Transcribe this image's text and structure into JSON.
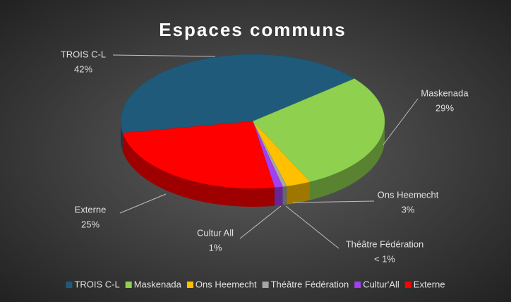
{
  "chart_data": {
    "type": "pie3d",
    "title": "Espaces communs",
    "categories": [
      "TROIS C-L",
      "Maskenada",
      "Ons Heemecht",
      "Théâtre Fédération",
      "Cultur'All",
      "Externe"
    ],
    "label_categories": [
      "TROIS C-L",
      "Maskenada",
      "Ons Heemecht",
      "Théâtre Fédération",
      "Cultur All",
      "Externe"
    ],
    "values": [
      42,
      29,
      3,
      0.5,
      1,
      25
    ],
    "value_labels": [
      "42%",
      "29%",
      "3%",
      "< 1%",
      "1%",
      "25%"
    ],
    "colors": [
      "#1f5a7a",
      "#8fd14f",
      "#ffc000",
      "#a6a6a6",
      "#a040f0",
      "#ff0000"
    ],
    "legend": "bottom"
  }
}
